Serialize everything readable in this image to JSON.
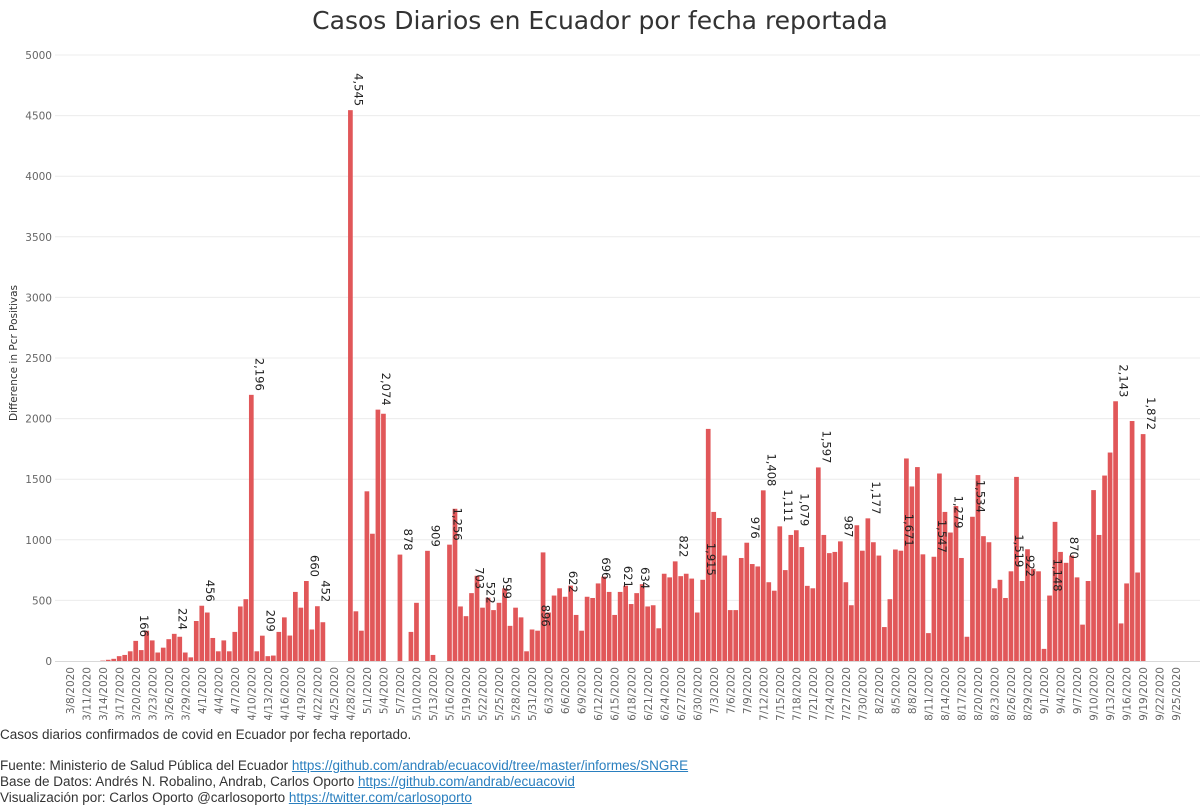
{
  "chart_data": {
    "type": "bar",
    "title": "Casos Diarios en Ecuador por fecha reportada",
    "ylabel": "Difference in Pcr Positivas",
    "ylim": [
      0,
      5000
    ],
    "yticks": [
      0,
      500,
      1000,
      1500,
      2000,
      2500,
      3000,
      3500,
      4000,
      4500,
      5000
    ],
    "x_start": "3/8/2020",
    "x_tick_labels": [
      "3/8/2020",
      "3/11/2020",
      "3/14/2020",
      "3/17/2020",
      "3/20/2020",
      "3/23/2020",
      "3/26/2020",
      "3/29/2020",
      "4/1/2020",
      "4/4/2020",
      "4/7/2020",
      "4/10/2020",
      "4/13/2020",
      "4/16/2020",
      "4/19/2020",
      "4/22/2020",
      "4/25/2020",
      "4/28/2020",
      "5/1/2020",
      "5/4/2020",
      "5/7/2020",
      "5/10/2020",
      "5/13/2020",
      "5/16/2020",
      "5/19/2020",
      "5/22/2020",
      "5/25/2020",
      "5/28/2020",
      "5/31/2020",
      "6/3/2020",
      "6/6/2020",
      "6/9/2020",
      "6/12/2020",
      "6/15/2020",
      "6/18/2020",
      "6/21/2020",
      "6/24/2020",
      "6/27/2020",
      "6/30/2020",
      "7/3/2020",
      "7/6/2020",
      "7/9/2020",
      "7/12/2020",
      "7/15/2020",
      "7/18/2020",
      "7/21/2020",
      "7/24/2020",
      "7/27/2020",
      "7/30/2020",
      "8/2/2020",
      "8/5/2020",
      "8/8/2020",
      "8/11/2020",
      "8/14/2020",
      "8/17/2020",
      "8/20/2020",
      "8/23/2020",
      "8/26/2020",
      "8/29/2020",
      "9/1/2020",
      "9/4/2020",
      "9/7/2020",
      "9/10/2020",
      "9/13/2020",
      "9/16/2020",
      "9/19/2020",
      "9/22/2020",
      "9/25/2020"
    ],
    "bar_color": "#e15759",
    "grid": true,
    "values": [
      0,
      0,
      0,
      0,
      0,
      0,
      3,
      10,
      18,
      40,
      50,
      80,
      166,
      90,
      250,
      170,
      70,
      110,
      180,
      224,
      200,
      70,
      30,
      330,
      456,
      400,
      190,
      80,
      170,
      80,
      240,
      450,
      510,
      2196,
      80,
      209,
      40,
      45,
      240,
      360,
      210,
      570,
      440,
      660,
      260,
      452,
      320,
      null,
      null,
      null,
      null,
      4545,
      410,
      250,
      1400,
      1050,
      2074,
      2040,
      null,
      null,
      878,
      null,
      240,
      480,
      null,
      909,
      50,
      null,
      null,
      960,
      1256,
      450,
      370,
      560,
      703,
      440,
      522,
      420,
      480,
      599,
      290,
      440,
      360,
      80,
      260,
      250,
      896,
      400,
      540,
      600,
      530,
      622,
      380,
      250,
      530,
      520,
      640,
      696,
      570,
      380,
      570,
      621,
      470,
      560,
      634,
      450,
      460,
      270,
      720,
      690,
      822,
      700,
      720,
      680,
      400,
      670,
      1915,
      1230,
      1180,
      870,
      420,
      420,
      850,
      976,
      800,
      780,
      1408,
      650,
      580,
      1111,
      750,
      1040,
      1079,
      940,
      620,
      600,
      1597,
      1040,
      890,
      900,
      987,
      650,
      460,
      1120,
      910,
      1177,
      980,
      870,
      280,
      510,
      920,
      910,
      1671,
      1440,
      1600,
      880,
      230,
      860,
      1547,
      1230,
      1060,
      1279,
      850,
      200,
      1190,
      1534,
      1030,
      980,
      600,
      670,
      520,
      740,
      1519,
      660,
      922,
      760,
      740,
      100,
      540,
      1148,
      900,
      810,
      870,
      690,
      300,
      660,
      1410,
      1040,
      1530,
      1720,
      2143,
      310,
      640,
      1980,
      730,
      1872,
      null,
      null,
      null,
      null,
      null,
      null,
      null,
      null
    ],
    "annotations": [
      {
        "date": "3/20/2020",
        "label": "166"
      },
      {
        "date": "3/27/2020",
        "label": "224"
      },
      {
        "date": "4/1/2020",
        "label": "456"
      },
      {
        "date": "4/10/2020",
        "label": "2,196"
      },
      {
        "date": "4/12/2020",
        "label": "209"
      },
      {
        "date": "4/20/2020",
        "label": "660"
      },
      {
        "date": "4/22/2020",
        "label": "452"
      },
      {
        "date": "4/28/2020",
        "label": "4,545"
      },
      {
        "date": "5/3/2020",
        "label": "2,074"
      },
      {
        "date": "5/7/2020",
        "label": "878"
      },
      {
        "date": "5/12/2020",
        "label": "909"
      },
      {
        "date": "5/16/2020",
        "label": "1,256"
      },
      {
        "date": "5/20/2020",
        "label": "703"
      },
      {
        "date": "5/22/2020",
        "label": "522"
      },
      {
        "date": "5/25/2020",
        "label": "599"
      },
      {
        "date": "6/1/2020",
        "label": "896"
      },
      {
        "date": "6/6/2020",
        "label": "622"
      },
      {
        "date": "6/12/2020",
        "label": "696"
      },
      {
        "date": "6/16/2020",
        "label": "621"
      },
      {
        "date": "6/19/2020",
        "label": "634"
      },
      {
        "date": "6/26/2020",
        "label": "822"
      },
      {
        "date": "7/1/2020",
        "label": "1,915"
      },
      {
        "date": "7/9/2020",
        "label": "976"
      },
      {
        "date": "7/12/2020",
        "label": "1,408"
      },
      {
        "date": "7/15/2020",
        "label": "1,111"
      },
      {
        "date": "7/18/2020",
        "label": "1,079"
      },
      {
        "date": "7/22/2020",
        "label": "1,597"
      },
      {
        "date": "7/26/2020",
        "label": "987"
      },
      {
        "date": "7/31/2020",
        "label": "1,177"
      },
      {
        "date": "8/6/2020",
        "label": "1,671"
      },
      {
        "date": "8/12/2020",
        "label": "1,547"
      },
      {
        "date": "8/15/2020",
        "label": "1,279"
      },
      {
        "date": "8/19/2020",
        "label": "1,534"
      },
      {
        "date": "8/26/2020",
        "label": "1,519"
      },
      {
        "date": "8/28/2020",
        "label": "922"
      },
      {
        "date": "9/2/2020",
        "label": "1,148"
      },
      {
        "date": "9/5/2020",
        "label": "870"
      },
      {
        "date": "9/14/2020",
        "label": "2,143"
      },
      {
        "date": "9/19/2020",
        "label": "1,872"
      }
    ]
  },
  "footer": {
    "caption": "Casos diarios confirmados de covid en Ecuador por fecha reportado.",
    "source_prefix": "Fuente: Ministerio de Salud Pública del Ecuador ",
    "source_link": "https://github.com/andrab/ecuacovid/tree/master/informes/SNGRE",
    "db_prefix": "Base de Datos: Andrés N. Robalino, Andrab, Carlos Oporto ",
    "db_link": "https://github.com/andrab/ecuacovid",
    "viz_prefix": "Visualización por: Carlos Oporto @carlosoporto ",
    "viz_link": "https://twitter.com/carlosoporto"
  }
}
